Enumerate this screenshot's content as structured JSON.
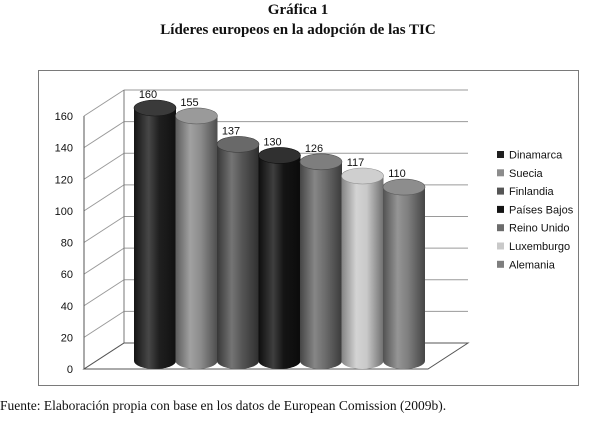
{
  "caption": {
    "number": "Gráfica 1",
    "title": "Líderes europeos en la adopción de las TIC"
  },
  "source": "Fuente: Elaboración propia con base en los datos de European Comission (2009b).",
  "chart_data": {
    "type": "bar",
    "style": "3d-cylinder",
    "categories": [
      "Dinamarca",
      "Suecia",
      "Finlandia",
      "Países Bajos",
      "Reino Unido",
      "Luxemburgo",
      "Alemania"
    ],
    "values": [
      160,
      155,
      137,
      130,
      126,
      117,
      110
    ],
    "data_labels": [
      "160",
      "155",
      "137",
      "130",
      "126",
      "117",
      "110"
    ],
    "colors": [
      "#1f1f1f",
      "#8c8c8c",
      "#555555",
      "#141414",
      "#6c6c6c",
      "#c9c9c9",
      "#7e7e7e"
    ],
    "ylim": [
      0,
      160
    ],
    "yticks": [
      0,
      20,
      40,
      60,
      80,
      100,
      120,
      140,
      160
    ],
    "grid": true,
    "legend_position": "right",
    "title": "",
    "xlabel": "",
    "ylabel": ""
  }
}
